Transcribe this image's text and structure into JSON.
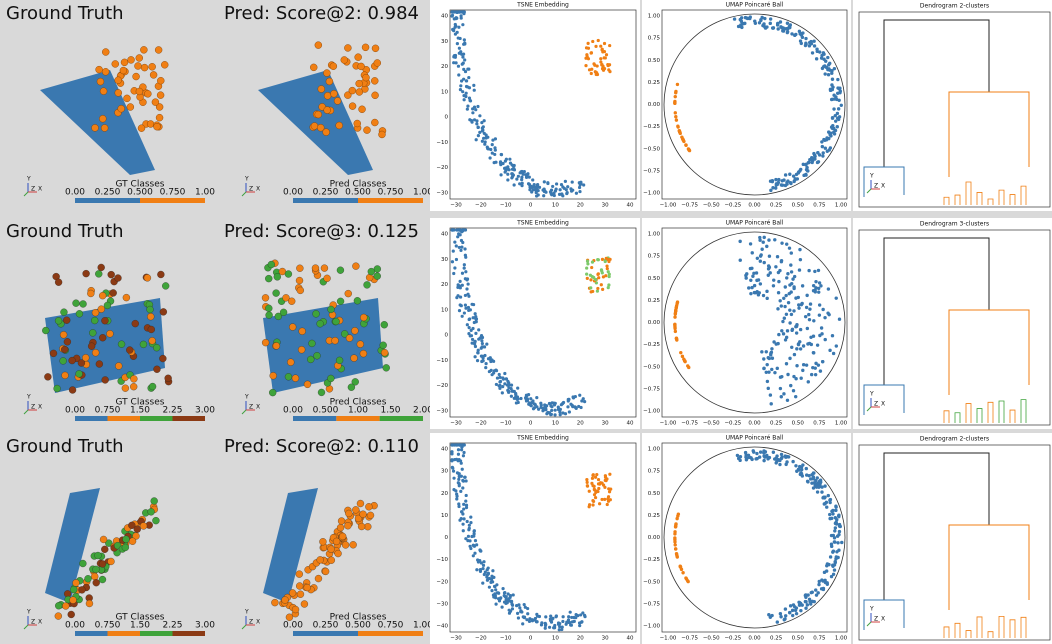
{
  "axis_triad": [
    "Y",
    "Z",
    "X"
  ],
  "rows": [
    {
      "gt": {
        "title": "Ground Truth",
        "colorbar_label": "GT Classes",
        "colorbar_ticks": [
          "0.00",
          "0.250",
          "0.500",
          "0.750",
          "1.00"
        ],
        "colors": [
          "#3a78b0",
          "#f07f14"
        ]
      },
      "pred": {
        "title": "Pred: Score@2: 0.984",
        "colorbar_label": "Pred Classes",
        "colorbar_ticks": [
          "0.00",
          "0.250",
          "0.500",
          "0.750",
          "1.00"
        ],
        "colors": [
          "#3a78b0",
          "#f07f14"
        ]
      },
      "tsne": {
        "title": "TSNE Embedding",
        "xticks": [
          "−30",
          "−20",
          "−10",
          "0",
          "10",
          "20",
          "30",
          "40"
        ],
        "yticks": [
          "−30",
          "−20",
          "−10",
          "0",
          "10",
          "20",
          "30",
          "40"
        ],
        "cluster_colors": [
          "#3a78b0",
          "#f07f14"
        ]
      },
      "umap": {
        "title": "UMAP Poincaré Ball",
        "xticks": [
          "−1.00",
          "−0.75",
          "−0.50",
          "−0.25",
          "0.00",
          "0.25",
          "0.50",
          "0.75",
          "1.00"
        ],
        "yticks": [
          "−1.00",
          "−0.75",
          "−0.50",
          "−0.25",
          "0.00",
          "0.25",
          "0.50",
          "0.75",
          "1.00"
        ],
        "cluster_colors": [
          "#3a78b0",
          "#f07f14"
        ]
      },
      "dendrogram": {
        "title": "Dendrogram 2-clusters",
        "cluster_colors": [
          "#3a78b0",
          "#f07f14"
        ]
      }
    },
    {
      "gt": {
        "title": "Ground Truth",
        "colorbar_label": "GT Classes",
        "colorbar_ticks": [
          "0.00",
          "0.750",
          "1.50",
          "2.25",
          "3.00"
        ],
        "colors": [
          "#3a78b0",
          "#f07f14",
          "#3fa33a",
          "#8b3a14"
        ]
      },
      "pred": {
        "title": "Pred: Score@3: 0.125",
        "colorbar_label": "Pred Classes",
        "colorbar_ticks": [
          "0.00",
          "0.500",
          "1.00",
          "1.50",
          "2.00"
        ],
        "colors": [
          "#3a78b0",
          "#f07f14",
          "#3fa33a"
        ]
      },
      "tsne": {
        "title": "TSNE Embedding",
        "xticks": [
          "−30",
          "−20",
          "−10",
          "0",
          "10",
          "20",
          "30",
          "40"
        ],
        "yticks": [
          "−30",
          "−20",
          "−10",
          "0",
          "10",
          "20",
          "30",
          "40"
        ],
        "cluster_colors": [
          "#3a78b0",
          "#7cc96a",
          "#f07f14"
        ]
      },
      "umap": {
        "title": "UMAP Poincaré Ball",
        "xticks": [
          "−1.00",
          "−0.75",
          "−0.50",
          "−0.25",
          "0.00",
          "0.25",
          "0.50",
          "0.75",
          "1.00"
        ],
        "yticks": [
          "−1.00",
          "−0.75",
          "−0.50",
          "−0.25",
          "0.00",
          "0.25",
          "0.50",
          "0.75",
          "1.00"
        ],
        "cluster_colors": [
          "#3a78b0",
          "#3fa33a",
          "#f07f14"
        ]
      },
      "dendrogram": {
        "title": "Dendrogram 3-clusters",
        "cluster_colors": [
          "#3a78b0",
          "#f07f14",
          "#3fa33a"
        ]
      }
    },
    {
      "gt": {
        "title": "Ground Truth",
        "colorbar_label": "GT Classes",
        "colorbar_ticks": [
          "0.00",
          "0.750",
          "1.50",
          "2.25",
          "3.00"
        ],
        "colors": [
          "#3a78b0",
          "#f07f14",
          "#3fa33a",
          "#8b3a14"
        ]
      },
      "pred": {
        "title": "Pred: Score@2: 0.110",
        "colorbar_label": "Pred Classes",
        "colorbar_ticks": [
          "0.00",
          "0.250",
          "0.500",
          "0.750",
          "1.00"
        ],
        "colors": [
          "#3a78b0",
          "#f07f14"
        ]
      },
      "tsne": {
        "title": "TSNE Embedding",
        "xticks": [
          "−30",
          "−20",
          "−10",
          "0",
          "10",
          "20",
          "30",
          "40"
        ],
        "yticks": [
          "−40",
          "−30",
          "−20",
          "−10",
          "0",
          "10",
          "20",
          "30",
          "40"
        ],
        "cluster_colors": [
          "#3a78b0",
          "#f07f14"
        ]
      },
      "umap": {
        "title": "UMAP Poincaré Ball",
        "xticks": [
          "−1.00",
          "−0.75",
          "−0.50",
          "−0.25",
          "0.00",
          "0.25",
          "0.50",
          "0.75",
          "1.00"
        ],
        "yticks": [
          "−1.00",
          "−0.75",
          "−0.50",
          "−0.25",
          "0.00",
          "0.25",
          "0.50",
          "0.75",
          "1.00"
        ],
        "cluster_colors": [
          "#3a78b0",
          "#f07f14"
        ]
      },
      "dendrogram": {
        "title": "Dendrogram 2-clusters",
        "cluster_colors": [
          "#3a78b0",
          "#f07f14"
        ]
      }
    }
  ]
}
